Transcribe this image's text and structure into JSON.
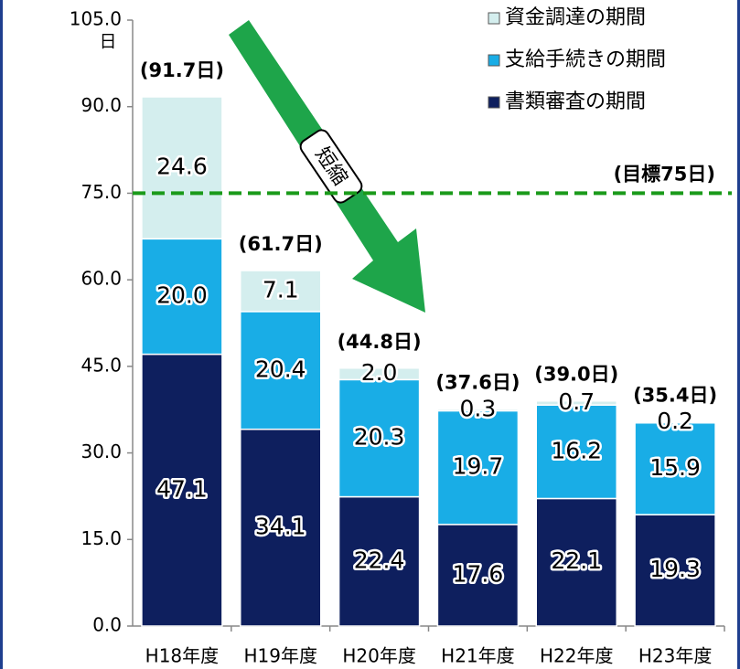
{
  "chart_data": {
    "type": "stacked_bar",
    "unit": "日",
    "categories": [
      "H18年度",
      "H19年度",
      "H20年度",
      "H21年度",
      "H22年度",
      "H23年度"
    ],
    "series": [
      {
        "name": "書類審査の期間",
        "color": "#0e1f5e",
        "values": [
          47.1,
          34.1,
          22.4,
          17.6,
          22.1,
          19.3
        ],
        "value_labels": [
          "47.1",
          "34.1",
          "22.4",
          "17.6",
          "22.1",
          "19.3"
        ]
      },
      {
        "name": "支給手続きの期間",
        "color": "#19ade6",
        "values": [
          20.0,
          20.4,
          20.3,
          19.7,
          16.2,
          15.9
        ],
        "value_labels": [
          "20.0",
          "20.4",
          "20.3",
          "19.7",
          "16.2",
          "15.9"
        ]
      },
      {
        "name": "資金調達の期間",
        "color": "#d4eeee",
        "values": [
          24.6,
          7.1,
          2.0,
          0.3,
          0.7,
          0.2
        ],
        "value_labels": [
          "24.6",
          "7.1",
          "2.0",
          "0.3",
          "0.7",
          "0.2"
        ]
      }
    ],
    "total_labels": [
      "(91.7日)",
      "(61.7日)",
      "(44.8日)",
      "(37.6日)",
      "(39.0日)",
      "(35.4日)"
    ],
    "target": {
      "value": 75,
      "label": "(目標75日)",
      "color": "#1a9a1a"
    },
    "arrow_label": "短縮",
    "ylim": [
      0,
      105
    ],
    "yticks": [
      {
        "value": 0,
        "label": "0.0"
      },
      {
        "value": 15,
        "label": "15.0"
      },
      {
        "value": 30,
        "label": "30.0"
      },
      {
        "value": 45,
        "label": "45.0"
      },
      {
        "value": 60,
        "label": "60.0"
      },
      {
        "value": 75,
        "label": "75.0"
      },
      {
        "value": 90,
        "label": "90.0"
      },
      {
        "value": 105,
        "label": "105.0"
      }
    ],
    "legend": "top-right",
    "grid": false
  }
}
